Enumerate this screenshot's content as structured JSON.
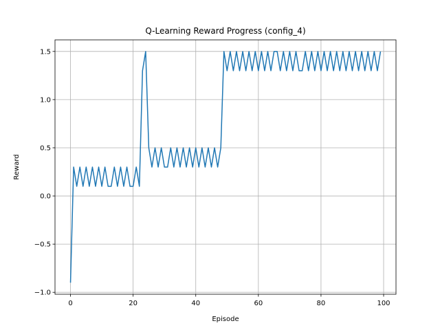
{
  "chart_data": {
    "type": "line",
    "title": "Q-Learning Reward Progress (config_4)",
    "xlabel": "Episode",
    "ylabel": "Reward",
    "xlim": [
      -4.95,
      103.95
    ],
    "ylim": [
      -1.02,
      1.62
    ],
    "xticks": [
      0,
      20,
      40,
      60,
      80,
      100
    ],
    "yticks": [
      -1.0,
      -0.5,
      0.0,
      0.5,
      1.0,
      1.5
    ],
    "xtick_labels": [
      "0",
      "20",
      "40",
      "60",
      "80",
      "100"
    ],
    "ytick_labels": [
      "−1.0",
      "−0.5",
      "0.0",
      "0.5",
      "1.0",
      "1.5"
    ],
    "grid": true,
    "line_color": "#1f77b4",
    "series": [
      {
        "x": [
          0,
          1,
          2,
          3,
          4,
          5,
          6,
          7,
          8,
          9,
          10,
          11,
          12,
          13,
          14,
          15,
          16,
          17,
          18,
          19,
          20,
          21,
          22,
          23,
          24,
          25,
          26,
          27,
          28,
          29,
          30,
          31,
          32,
          33,
          34,
          35,
          36,
          37,
          38,
          39,
          40,
          41,
          42,
          43,
          44,
          45,
          46,
          47,
          48,
          49,
          50,
          51,
          52,
          53,
          54,
          55,
          56,
          57,
          58,
          59,
          60,
          61,
          62,
          63,
          64,
          65,
          66,
          67,
          68,
          69,
          70,
          71,
          72,
          73,
          74,
          75,
          76,
          77,
          78,
          79,
          80,
          81,
          82,
          83,
          84,
          85,
          86,
          87,
          88,
          89,
          90,
          91,
          92,
          93,
          94,
          95,
          96,
          97,
          98,
          99
        ],
        "values": [
          -0.9,
          0.3,
          0.1,
          0.3,
          0.1,
          0.3,
          0.1,
          0.3,
          0.1,
          0.3,
          0.1,
          0.3,
          0.1,
          0.1,
          0.3,
          0.1,
          0.3,
          0.1,
          0.3,
          0.1,
          0.1,
          0.3,
          0.1,
          1.3,
          1.5,
          0.5,
          0.3,
          0.5,
          0.3,
          0.5,
          0.3,
          0.3,
          0.5,
          0.3,
          0.5,
          0.3,
          0.5,
          0.3,
          0.5,
          0.3,
          0.5,
          0.3,
          0.5,
          0.3,
          0.5,
          0.3,
          0.5,
          0.3,
          0.5,
          1.5,
          1.3,
          1.5,
          1.3,
          1.5,
          1.3,
          1.5,
          1.3,
          1.5,
          1.3,
          1.5,
          1.3,
          1.5,
          1.3,
          1.5,
          1.3,
          1.5,
          1.5,
          1.3,
          1.5,
          1.3,
          1.5,
          1.3,
          1.5,
          1.3,
          1.3,
          1.5,
          1.3,
          1.5,
          1.3,
          1.5,
          1.3,
          1.5,
          1.3,
          1.5,
          1.3,
          1.5,
          1.3,
          1.5,
          1.3,
          1.5,
          1.3,
          1.5,
          1.3,
          1.5,
          1.3,
          1.5,
          1.3,
          1.5,
          1.3,
          1.5
        ]
      }
    ]
  }
}
